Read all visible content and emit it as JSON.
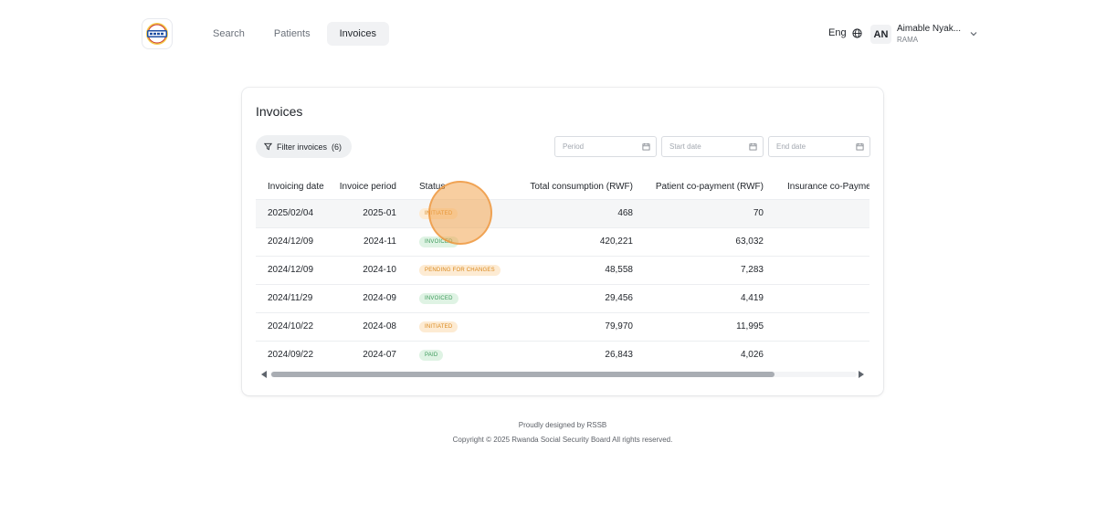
{
  "header": {
    "logo_text": "RSSB",
    "nav": [
      {
        "label": "Search",
        "active": false
      },
      {
        "label": "Patients",
        "active": false
      },
      {
        "label": "Invoices",
        "active": true
      }
    ],
    "language": "Eng",
    "user": {
      "initials": "AN",
      "name": "Aimable Nyak...",
      "org": "RAMA"
    }
  },
  "main": {
    "title": "Invoices",
    "filter_label": "Filter invoices",
    "filter_count": "(6)",
    "date_fields": {
      "period": "Period",
      "start": "Start date",
      "end": "End date"
    },
    "table": {
      "columns": [
        "Invoicing date",
        "Invoice period",
        "Status",
        "Total consumption (RWF)",
        "Patient co-payment (RWF)",
        "Insurance co-Paymer"
      ],
      "rows": [
        {
          "date": "2025/02/04",
          "period": "2025-01",
          "status": "INITIATED",
          "status_type": "initiated",
          "total": "468",
          "patient": "70"
        },
        {
          "date": "2024/12/09",
          "period": "2024-11",
          "status": "INVOICED",
          "status_type": "invoiced",
          "total": "420,221",
          "patient": "63,032"
        },
        {
          "date": "2024/12/09",
          "period": "2024-10",
          "status": "PENDING FOR CHANGES",
          "status_type": "pending",
          "total": "48,558",
          "patient": "7,283"
        },
        {
          "date": "2024/11/29",
          "period": "2024-09",
          "status": "INVOICED",
          "status_type": "invoiced",
          "total": "29,456",
          "patient": "4,419"
        },
        {
          "date": "2024/10/22",
          "period": "2024-08",
          "status": "INITIATED",
          "status_type": "initiated",
          "total": "79,970",
          "patient": "11,995"
        },
        {
          "date": "2024/09/22",
          "period": "2024-07",
          "status": "PAID",
          "status_type": "paid",
          "total": "26,843",
          "patient": "4,026"
        }
      ]
    }
  },
  "footer": {
    "line1": "Proudly designed by RSSB",
    "line2": "Copyright © 2025 Rwanda Social Security Board All rights reserved."
  },
  "colors": {
    "status_initiated": "#d9871a",
    "status_invoiced": "#3c9a5a",
    "status_paid": "#3c9a5a",
    "click_highlight": "#f3a652"
  }
}
